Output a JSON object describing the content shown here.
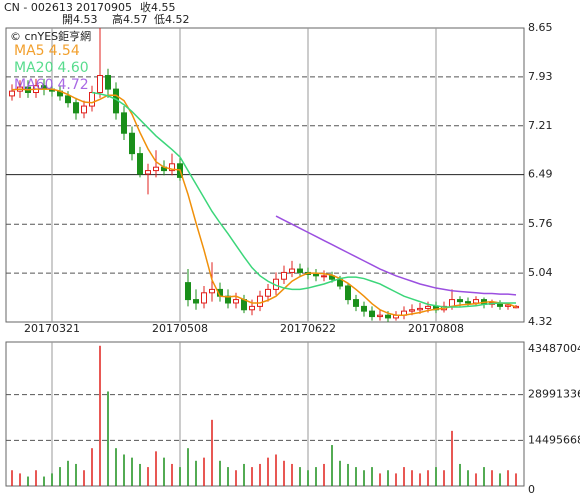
{
  "header": {
    "symbol": "CN - 002613",
    "date": "20170905",
    "close": "收4.55",
    "open": "開4.53",
    "high": "高4.57",
    "low": "低4.52",
    "watermark": "© cnYES鉅亨網"
  },
  "chart_data": [
    {
      "type": "candlestick",
      "categories": [
        null,
        null,
        null,
        null,
        null,
        "20170321",
        null,
        null,
        null,
        null,
        null,
        null,
        null,
        null,
        null,
        null,
        null,
        null,
        null,
        null,
        null,
        "20170508",
        null,
        null,
        null,
        null,
        null,
        null,
        null,
        null,
        null,
        null,
        null,
        null,
        null,
        null,
        null,
        "20170622",
        null,
        null,
        null,
        null,
        null,
        null,
        null,
        null,
        null,
        null,
        null,
        null,
        null,
        null,
        null,
        "20170808",
        null,
        null,
        null,
        null,
        null,
        null,
        null,
        null,
        null,
        null
      ],
      "open": [
        7.65,
        7.72,
        7.78,
        7.7,
        7.8,
        7.75,
        7.72,
        7.65,
        7.55,
        7.4,
        7.5,
        7.7,
        7.95,
        7.75,
        7.4,
        7.1,
        6.8,
        6.5,
        6.55,
        6.6,
        6.55,
        6.65,
        4.9,
        4.65,
        4.6,
        4.75,
        4.8,
        4.7,
        4.6,
        4.65,
        4.5,
        4.55,
        4.7,
        4.8,
        4.95,
        5.05,
        5.1,
        5.05,
        5.02,
        5.0,
        5.0,
        4.95,
        4.85,
        4.65,
        4.55,
        4.48,
        4.4,
        4.42,
        4.38,
        4.42,
        4.48,
        4.5,
        4.52,
        4.55,
        4.5,
        4.55,
        4.65,
        4.62,
        4.6,
        4.65,
        4.58,
        4.6,
        4.55,
        4.53
      ],
      "high": [
        7.82,
        7.88,
        7.88,
        7.9,
        7.9,
        7.85,
        7.8,
        7.72,
        7.62,
        7.58,
        7.8,
        8.65,
        8.05,
        7.85,
        7.5,
        7.2,
        6.9,
        6.65,
        6.85,
        6.7,
        6.8,
        6.75,
        5.1,
        4.8,
        4.85,
        5.2,
        4.9,
        4.8,
        4.75,
        4.72,
        4.65,
        4.78,
        4.88,
        5.05,
        5.15,
        5.22,
        5.18,
        5.12,
        5.1,
        5.08,
        5.06,
        5.0,
        4.9,
        4.72,
        4.62,
        4.55,
        4.5,
        4.48,
        4.48,
        4.55,
        4.58,
        4.6,
        4.62,
        4.62,
        4.62,
        4.8,
        4.7,
        4.68,
        4.7,
        4.68,
        4.65,
        4.64,
        4.6,
        4.57
      ],
      "low": [
        7.58,
        7.62,
        7.62,
        7.62,
        7.66,
        7.64,
        7.58,
        7.48,
        7.3,
        7.32,
        7.42,
        7.62,
        7.62,
        7.3,
        7.0,
        6.7,
        6.45,
        6.2,
        6.45,
        6.48,
        6.48,
        6.4,
        4.55,
        4.5,
        4.52,
        4.62,
        4.62,
        4.52,
        4.52,
        4.45,
        4.42,
        4.48,
        4.62,
        4.72,
        4.88,
        4.98,
        4.98,
        4.95,
        4.92,
        4.92,
        4.9,
        4.8,
        4.58,
        4.48,
        4.4,
        4.34,
        4.34,
        4.32,
        4.34,
        4.36,
        4.42,
        4.44,
        4.46,
        4.45,
        4.46,
        4.5,
        4.55,
        4.54,
        4.55,
        4.52,
        4.53,
        4.5,
        4.5,
        4.52
      ],
      "close": [
        7.72,
        7.78,
        7.7,
        7.8,
        7.75,
        7.72,
        7.65,
        7.55,
        7.4,
        7.5,
        7.7,
        7.95,
        7.75,
        7.4,
        7.1,
        6.8,
        6.5,
        6.55,
        6.6,
        6.55,
        6.65,
        6.45,
        4.65,
        4.6,
        4.75,
        4.8,
        4.7,
        4.6,
        4.65,
        4.5,
        4.55,
        4.7,
        4.8,
        4.95,
        5.05,
        5.1,
        5.05,
        5.02,
        5.0,
        5.0,
        4.95,
        4.85,
        4.65,
        4.55,
        4.48,
        4.4,
        4.42,
        4.38,
        4.42,
        4.48,
        4.5,
        4.52,
        4.55,
        4.5,
        4.55,
        4.65,
        4.62,
        4.6,
        4.65,
        4.58,
        4.6,
        4.55,
        4.57,
        4.55
      ],
      "up_color": "#e0201c",
      "down_color": "#1a8f1a",
      "series": [
        {
          "name": "MA5",
          "color": "#f0900a",
          "last_label": "4.54",
          "values": [
            7.74,
            7.75,
            7.74,
            7.75,
            7.75,
            7.75,
            7.72,
            7.67,
            7.61,
            7.56,
            7.55,
            7.6,
            7.66,
            7.66,
            7.58,
            7.38,
            7.11,
            6.87,
            6.68,
            6.6,
            6.57,
            6.56,
            6.2,
            5.78,
            5.38,
            4.94,
            4.7,
            4.69,
            4.7,
            4.65,
            4.6,
            4.6,
            4.64,
            4.7,
            4.81,
            4.92,
            4.99,
            5.04,
            5.04,
            5.03,
            5.01,
            4.96,
            4.89,
            4.8,
            4.7,
            4.59,
            4.5,
            4.45,
            4.42,
            4.42,
            4.44,
            4.46,
            4.49,
            4.51,
            4.52,
            4.55,
            4.57,
            4.58,
            4.59,
            4.61,
            4.62,
            4.6,
            4.59,
            4.54
          ]
        },
        {
          "name": "MA20",
          "color": "#3cd67a",
          "last_label": "4.60",
          "values": [
            null,
            null,
            null,
            null,
            null,
            null,
            null,
            null,
            null,
            null,
            7.7,
            7.68,
            7.65,
            7.6,
            7.52,
            7.42,
            7.3,
            7.18,
            7.06,
            6.96,
            6.86,
            6.75,
            6.55,
            6.35,
            6.15,
            5.95,
            5.78,
            5.62,
            5.45,
            5.28,
            5.12,
            5.0,
            4.92,
            4.86,
            4.82,
            4.8,
            4.8,
            4.82,
            4.85,
            4.88,
            4.92,
            4.96,
            4.98,
            4.98,
            4.96,
            4.92,
            4.88,
            4.82,
            4.76,
            4.7,
            4.66,
            4.62,
            4.58,
            4.56,
            4.54,
            4.54,
            4.54,
            4.55,
            4.56,
            4.58,
            4.59,
            4.6,
            4.6,
            4.6
          ]
        },
        {
          "name": "MA60",
          "color": "#9b4fe0",
          "last_label": "4.72",
          "values": [
            null,
            null,
            null,
            null,
            null,
            null,
            null,
            null,
            null,
            null,
            null,
            null,
            null,
            null,
            null,
            null,
            null,
            null,
            null,
            null,
            null,
            null,
            null,
            null,
            null,
            null,
            null,
            null,
            null,
            null,
            null,
            null,
            null,
            5.88,
            5.82,
            5.76,
            5.7,
            5.64,
            5.58,
            5.52,
            5.46,
            5.4,
            5.34,
            5.28,
            5.22,
            5.16,
            5.1,
            5.05,
            5.0,
            4.96,
            4.92,
            4.88,
            4.85,
            4.82,
            4.8,
            4.78,
            4.77,
            4.76,
            4.75,
            4.74,
            4.74,
            4.73,
            4.73,
            4.72
          ]
        }
      ],
      "ylim": [
        4.32,
        8.65
      ],
      "yticks": [
        4.32,
        5.04,
        5.76,
        6.49,
        7.21,
        7.93,
        8.65
      ],
      "grid": true
    },
    {
      "type": "bar",
      "values": [
        5000000,
        4000000,
        3000000,
        5000000,
        3000000,
        4000000,
        6000000,
        8000000,
        7000000,
        5000000,
        12000000,
        44500000,
        30000000,
        12000000,
        10000000,
        9000000,
        7000000,
        6000000,
        11000000,
        9000000,
        7000000,
        6000000,
        12000000,
        8000000,
        9000000,
        21000000,
        8000000,
        6000000,
        5000000,
        7000000,
        6000000,
        7000000,
        9000000,
        10000000,
        8000000,
        7000000,
        6000000,
        5000000,
        6000000,
        7000000,
        13000000,
        8000000,
        7000000,
        6000000,
        5000000,
        6000000,
        4000000,
        5000000,
        4000000,
        6000000,
        5000000,
        4000000,
        5000000,
        6000000,
        5000000,
        17500000,
        7000000,
        5000000,
        4000000,
        6000000,
        5000000,
        4000000,
        5000000,
        4000000
      ],
      "ylim": [
        0,
        45700000
      ],
      "yticks": [
        0,
        14495668,
        28991336,
        43487004
      ],
      "grid": true
    }
  ]
}
